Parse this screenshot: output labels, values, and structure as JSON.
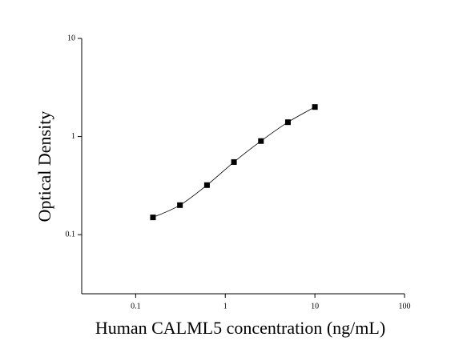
{
  "chart_data": {
    "type": "scatter",
    "x_label": "Human CALML5 concentration (ng/mL)",
    "y_label": "Optical Density",
    "x": [
      0.156,
      0.312,
      0.625,
      1.25,
      2.5,
      5,
      10
    ],
    "values": [
      0.15,
      0.2,
      0.32,
      0.55,
      0.9,
      1.4,
      2.0
    ],
    "color": "#000000",
    "xscale": "log",
    "yscale": "log",
    "xlim": [
      0.025,
      100
    ],
    "ylim": [
      0.025,
      10
    ],
    "xticks": [
      0.1,
      1,
      10,
      100
    ],
    "yticks": [
      0.1,
      1,
      10
    ],
    "fit_curve": true
  }
}
